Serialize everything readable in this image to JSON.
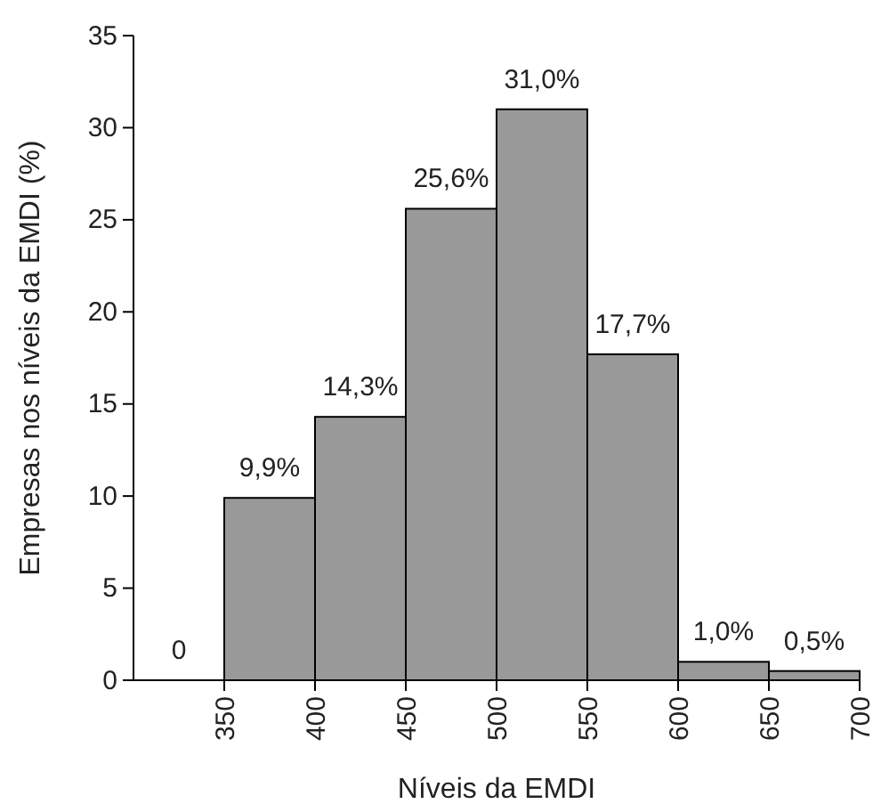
{
  "chart_data": {
    "type": "histogram",
    "xlabel": "Níveis da EMDI",
    "ylabel": "Empresas nos níveis da EMDI (%)",
    "bins": [
      300,
      350,
      400,
      450,
      500,
      550,
      600,
      650,
      700
    ],
    "values": [
      0,
      9.9,
      14.3,
      25.6,
      31.0,
      17.7,
      1.0,
      0.5
    ],
    "value_labels": [
      "0",
      "9,9%",
      "14,3%",
      "25,6%",
      "31,0%",
      "17,7%",
      "1,0%",
      "0,5%"
    ],
    "color": "#999999",
    "xlim": [
      300,
      700
    ],
    "xticks": [
      350,
      400,
      450,
      500,
      550,
      600,
      650,
      700
    ],
    "ylim": [
      0,
      35
    ],
    "yticks": [
      0,
      5,
      10,
      15,
      20,
      25,
      30,
      35
    ],
    "grid": false
  }
}
